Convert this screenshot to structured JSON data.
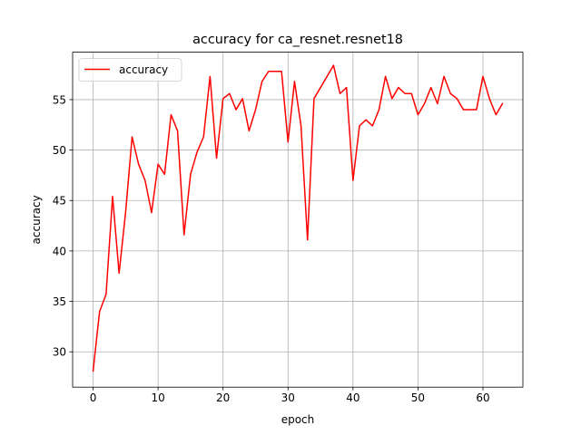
{
  "chart_data": {
    "type": "line",
    "title": "accuracy for ca_resnet.resnet18",
    "xlabel": "epoch",
    "ylabel": "accuracy",
    "xlim": [
      -3.15,
      66.15
    ],
    "ylim": [
      26.5,
      59.7
    ],
    "xticks": [
      0,
      10,
      20,
      30,
      40,
      50,
      60
    ],
    "yticks": [
      30,
      35,
      40,
      45,
      50,
      55
    ],
    "grid": true,
    "legend": {
      "position": "top-left",
      "entries": [
        "accuracy"
      ]
    },
    "series": [
      {
        "name": "accuracy",
        "color": "#ff0000",
        "x": [
          0,
          1,
          2,
          3,
          4,
          5,
          6,
          7,
          8,
          9,
          10,
          11,
          12,
          13,
          14,
          15,
          16,
          17,
          18,
          19,
          20,
          21,
          22,
          23,
          24,
          25,
          26,
          27,
          28,
          29,
          30,
          31,
          32,
          33,
          34,
          35,
          36,
          37,
          38,
          39,
          40,
          41,
          42,
          43,
          44,
          45,
          46,
          47,
          48,
          49,
          50,
          51,
          52,
          53,
          54,
          55,
          56,
          57,
          58,
          59,
          60,
          61,
          62,
          63
        ],
        "values": [
          28.1,
          34.0,
          35.7,
          45.4,
          37.8,
          43.8,
          51.3,
          48.6,
          47.0,
          43.8,
          48.6,
          47.6,
          53.5,
          51.9,
          41.6,
          47.6,
          49.8,
          51.3,
          57.3,
          49.2,
          55.1,
          55.6,
          54.0,
          55.1,
          51.9,
          54.0,
          56.8,
          57.8,
          57.8,
          57.8,
          50.8,
          56.8,
          52.4,
          41.1,
          55.1,
          56.2,
          57.3,
          58.4,
          55.6,
          56.2,
          47.0,
          52.4,
          53.0,
          52.4,
          54.0,
          57.3,
          55.1,
          56.2,
          55.6,
          55.6,
          53.5,
          54.6,
          56.2,
          54.6,
          57.3,
          55.6,
          55.1,
          54.0,
          54.0,
          54.0,
          57.3,
          55.1,
          53.5,
          54.6
        ]
      }
    ]
  }
}
